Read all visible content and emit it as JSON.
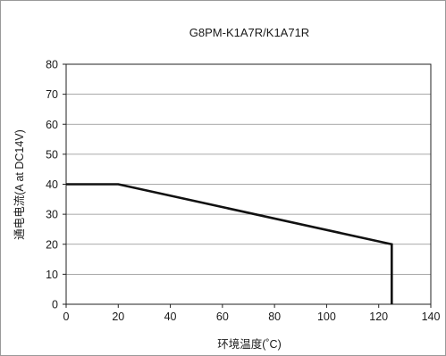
{
  "chart_data": {
    "type": "line",
    "title": "G8PM-K1A7R/K1A71R",
    "xlabel": "环境温度(˚C)",
    "ylabel": "通电电流(A at DC14V)",
    "xlim": [
      0,
      140
    ],
    "ylim": [
      0,
      80
    ],
    "x_ticks": [
      0,
      20,
      40,
      60,
      80,
      100,
      120,
      140
    ],
    "y_ticks": [
      0,
      10,
      20,
      30,
      40,
      50,
      60,
      70,
      80
    ],
    "grid": "horizontal",
    "series": [
      {
        "x": [
          0,
          20,
          125,
          125
        ],
        "y": [
          40,
          40,
          20,
          0
        ]
      }
    ],
    "colors": {
      "line": "#111111",
      "grid": "#8c8c8c",
      "axis": "#222222"
    }
  }
}
